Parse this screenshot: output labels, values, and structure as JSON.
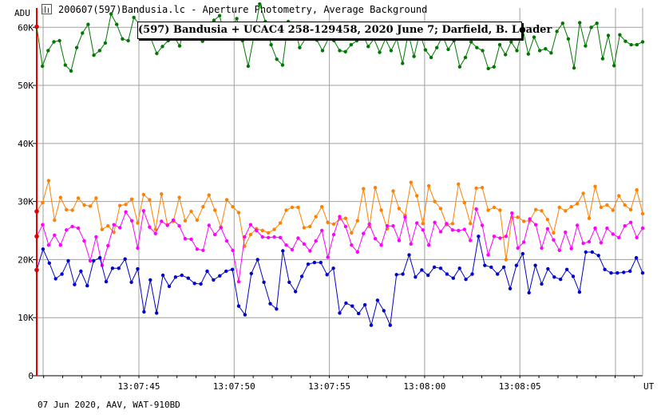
{
  "window": {
    "title": "200607(597)Bandusia.lc - Aperture Photometry, Average Background",
    "icon": "lightcurve-icon"
  },
  "footer": {
    "text": "07 Jun 2020, AAV, WAT-910BD"
  },
  "chart_data": {
    "type": "line",
    "title": "(597) Bandusia + UCAC4 258-129458, 2020 June 7; Darfield, B. Loader",
    "ylabel": "ADU",
    "xlabel": "UT",
    "ylim": [
      0,
      63333
    ],
    "x_tick_labels": [
      "13:07:45",
      "13:07:50",
      "13:07:55",
      "13:08:00",
      "13:08:05"
    ],
    "y_tick_labels": [
      "0",
      "10K",
      "20K",
      "30K",
      "40K",
      "50K",
      "60K"
    ],
    "y_ticks": [
      0,
      10000,
      20000,
      30000,
      40000,
      50000,
      60000
    ],
    "grid": true,
    "colors": {
      "grid": "#a0a0a0",
      "axis": "#a0a0a0",
      "marker": "#e00000",
      "frame": "#000000"
    },
    "series": [
      {
        "color": "#007700",
        "values": [
          60100,
          53300,
          56000,
          57500,
          57700,
          53500,
          52500,
          56500,
          59000,
          60500,
          55200,
          56000,
          57300,
          62300,
          60500,
          58000,
          57700,
          61700,
          60500,
          60000,
          58000,
          55500,
          56700,
          57700,
          58500,
          56800,
          60400,
          59800,
          58400,
          57600,
          60400,
          61200,
          62000,
          58200,
          59500,
          61500,
          57700,
          53300,
          58500,
          64000,
          61000,
          57000,
          54500,
          53500,
          61000,
          60500,
          56500,
          58000,
          59700,
          57800,
          56000,
          58000,
          57700,
          56000,
          55800,
          57000,
          57700,
          58900,
          56700,
          58000,
          55700,
          58000,
          56000,
          58000,
          53800,
          59000,
          55000,
          59000,
          56100,
          54800,
          56500,
          58500,
          56200,
          57700,
          53200,
          54800,
          57500,
          56500,
          56000,
          52900,
          53200,
          57000,
          55300,
          57500,
          56000,
          59800,
          55400,
          58300,
          56000,
          56300,
          55600,
          59300,
          60700,
          58000,
          53000,
          60800,
          56800,
          60000,
          60700,
          54600,
          58600,
          53400,
          58700,
          57600,
          57000,
          57000,
          57500
        ]
      },
      {
        "color": "#ff8000",
        "values": [
          28300,
          29800,
          33600,
          26800,
          30700,
          28600,
          28500,
          30600,
          29400,
          29200,
          30600,
          25200,
          25800,
          24700,
          29300,
          29500,
          30400,
          26300,
          31200,
          30300,
          25200,
          31300,
          26000,
          26600,
          30700,
          26700,
          28300,
          26800,
          29100,
          31100,
          28500,
          25600,
          30300,
          29100,
          28100,
          22300,
          24300,
          25300,
          25000,
          24600,
          25200,
          26300,
          28500,
          29000,
          29000,
          25500,
          25700,
          27400,
          29100,
          26400,
          26100,
          27000,
          27100,
          24600,
          26700,
          32200,
          25700,
          32400,
          28500,
          25300,
          31800,
          28800,
          27600,
          33300,
          31000,
          26200,
          32700,
          30000,
          28800,
          26000,
          26200,
          33000,
          29800,
          26200,
          32300,
          32400,
          28500,
          29000,
          28500,
          20000,
          27300,
          27300,
          26600,
          26700,
          28600,
          28400,
          26900,
          24600,
          29000,
          28400,
          29100,
          29600,
          31400,
          27100,
          32600,
          29000,
          29400,
          28500,
          31000,
          29400,
          28600,
          32000,
          27900
        ]
      },
      {
        "color": "#ff00ff",
        "values": [
          24000,
          26000,
          22500,
          24200,
          22500,
          25100,
          25700,
          25400,
          23200,
          19800,
          23900,
          19000,
          22400,
          26000,
          25500,
          28200,
          26700,
          22000,
          28400,
          25600,
          24500,
          26600,
          25900,
          26800,
          25800,
          23600,
          23500,
          21800,
          21600,
          25900,
          24300,
          25500,
          23200,
          21600,
          16200,
          23900,
          26000,
          25000,
          23900,
          23800,
          23900,
          23800,
          22500,
          21700,
          23700,
          22700,
          21500,
          23200,
          25000,
          20400,
          24300,
          27400,
          25700,
          22500,
          21300,
          24500,
          26100,
          23600,
          22500,
          25800,
          25800,
          23300,
          27300,
          22700,
          26300,
          25100,
          22500,
          26400,
          24800,
          26200,
          25100,
          25000,
          25200,
          23300,
          28700,
          25900,
          20800,
          24000,
          23700,
          24000,
          28000,
          22000,
          23000,
          27000,
          26000,
          22000,
          25300,
          23400,
          21600,
          24700,
          21900,
          25900,
          22800,
          23100,
          25400,
          22900,
          25400,
          24400,
          23800,
          25800,
          26400,
          23800,
          25400
        ]
      },
      {
        "color": "#0000cc",
        "values": [
          18200,
          21800,
          19400,
          16700,
          17500,
          19800,
          15700,
          18000,
          15500,
          19800,
          20300,
          16200,
          18500,
          18500,
          20100,
          16100,
          18400,
          11000,
          16500,
          10800,
          17300,
          15400,
          17000,
          17300,
          16800,
          15900,
          15800,
          18000,
          16500,
          17200,
          18000,
          18300,
          12000,
          10500,
          17600,
          20000,
          16100,
          12400,
          11500,
          21500,
          16100,
          14500,
          17100,
          19200,
          19500,
          19500,
          17400,
          18500,
          10800,
          12500,
          12000,
          10700,
          12200,
          8700,
          13000,
          11200,
          8700,
          17400,
          17500,
          20800,
          17000,
          18200,
          17300,
          18700,
          18500,
          17500,
          16800,
          18500,
          16600,
          17500,
          24000,
          19000,
          18700,
          17500,
          18700,
          15000,
          19000,
          21000,
          14300,
          19000,
          15800,
          18400,
          17000,
          16600,
          18300,
          17100,
          14400,
          21300,
          21300,
          20700,
          18300,
          17700,
          17700,
          17800,
          18000,
          20300,
          17700
        ]
      }
    ]
  }
}
